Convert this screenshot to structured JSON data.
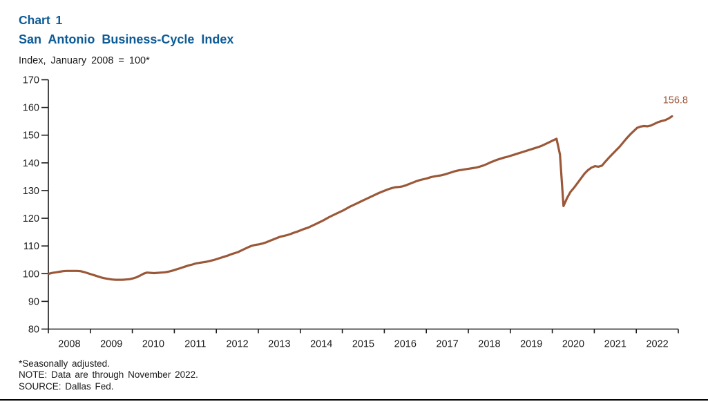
{
  "header": {
    "chart_label": "Chart 1",
    "title": "San Antonio Business-Cycle Index",
    "units": "Index, January 2008 = 100*"
  },
  "footnotes": {
    "seasonal": "*Seasonally adjusted.",
    "note": "NOTE: Data are through November 2022.",
    "source": "SOURCE: Dallas Fed."
  },
  "colors": {
    "title_blue": "#0c5a96",
    "line_brown": "#9b5839",
    "axis_black": "#1a1a1a"
  },
  "chart_data": {
    "type": "line",
    "title": "San Antonio Business-Cycle Index",
    "subtitle": "Index, January 2008 = 100*",
    "xlabel": "",
    "ylabel": "Index, January 2008 = 100*",
    "ylim": [
      80,
      170
    ],
    "y_ticks": [
      80,
      90,
      100,
      110,
      120,
      130,
      140,
      150,
      160,
      170
    ],
    "x_tick_years": [
      "2008",
      "2009",
      "2010",
      "2011",
      "2012",
      "2013",
      "2014",
      "2015",
      "2016",
      "2017",
      "2018",
      "2019",
      "2020",
      "2021",
      "2022"
    ],
    "grid": false,
    "legend": "none",
    "end_label": "156.8",
    "frequency": "monthly",
    "start_year": 2008,
    "start_month": 1,
    "end_month_label": "November 2022",
    "series": [
      {
        "name": "San Antonio Business-Cycle Index",
        "color": "#9b5839",
        "values": [
          100.0,
          100.3,
          100.5,
          100.7,
          100.9,
          101.0,
          101.0,
          101.0,
          101.0,
          100.9,
          100.6,
          100.2,
          99.8,
          99.4,
          99.0,
          98.6,
          98.3,
          98.1,
          97.9,
          97.8,
          97.8,
          97.8,
          97.9,
          98.0,
          98.3,
          98.7,
          99.3,
          100.0,
          100.4,
          100.3,
          100.2,
          100.3,
          100.4,
          100.5,
          100.7,
          101.0,
          101.4,
          101.8,
          102.2,
          102.6,
          103.0,
          103.3,
          103.7,
          103.9,
          104.1,
          104.3,
          104.6,
          104.9,
          105.3,
          105.7,
          106.1,
          106.5,
          107.0,
          107.4,
          107.8,
          108.4,
          109.0,
          109.6,
          110.1,
          110.4,
          110.6,
          110.9,
          111.3,
          111.8,
          112.3,
          112.8,
          113.3,
          113.6,
          113.9,
          114.3,
          114.8,
          115.2,
          115.7,
          116.2,
          116.6,
          117.2,
          117.8,
          118.4,
          119.0,
          119.7,
          120.4,
          121.0,
          121.6,
          122.2,
          122.8,
          123.5,
          124.2,
          124.8,
          125.4,
          126.0,
          126.6,
          127.2,
          127.8,
          128.4,
          129.0,
          129.5,
          130.0,
          130.5,
          130.9,
          131.2,
          131.3,
          131.5,
          131.9,
          132.4,
          132.9,
          133.4,
          133.8,
          134.1,
          134.4,
          134.8,
          135.1,
          135.3,
          135.5,
          135.8,
          136.2,
          136.6,
          137.0,
          137.3,
          137.5,
          137.7,
          137.9,
          138.1,
          138.3,
          138.6,
          139.0,
          139.5,
          140.1,
          140.6,
          141.1,
          141.5,
          141.9,
          142.2,
          142.6,
          143.0,
          143.4,
          143.8,
          144.2,
          144.6,
          145.0,
          145.4,
          145.8,
          146.3,
          146.9,
          147.5,
          148.1,
          148.7,
          143.0,
          124.4,
          127.3,
          129.5,
          131.0,
          132.7,
          134.4,
          136.1,
          137.4,
          138.3,
          138.8,
          138.6,
          139.0,
          140.5,
          141.9,
          143.2,
          144.5,
          145.8,
          147.3,
          148.8,
          150.2,
          151.4,
          152.6,
          153.1,
          153.3,
          153.2,
          153.5,
          154.1,
          154.7,
          155.1,
          155.4,
          156.0,
          156.8
        ]
      }
    ]
  }
}
